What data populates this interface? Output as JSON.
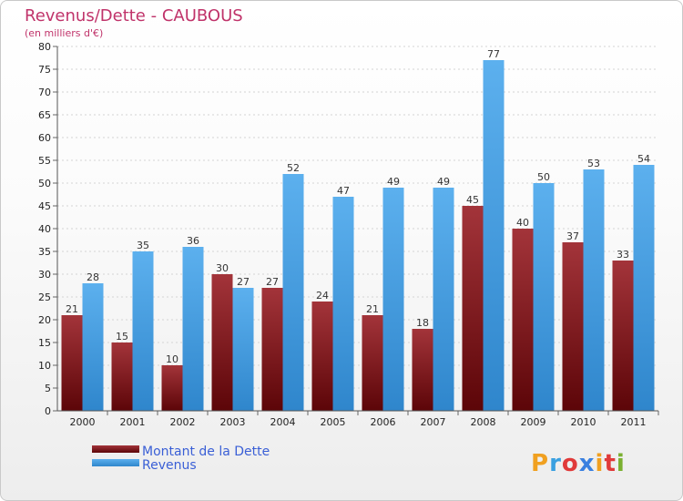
{
  "chart_data": {
    "type": "bar",
    "title": "Revenus/Dette - CAUBOUS",
    "subtitle": "(en milliers d'€)",
    "categories": [
      "2000",
      "2001",
      "2002",
      "2003",
      "2004",
      "2005",
      "2006",
      "2007",
      "2008",
      "2009",
      "2010",
      "2011"
    ],
    "series": [
      {
        "name": "Montant de la Dette",
        "color": "#8b1a1f",
        "values": [
          21,
          15,
          10,
          30,
          27,
          24,
          21,
          18,
          45,
          40,
          37,
          33
        ]
      },
      {
        "name": "Revenus",
        "color": "#4fa3e6",
        "values": [
          28,
          35,
          36,
          27,
          52,
          47,
          49,
          49,
          77,
          50,
          53,
          54
        ]
      }
    ],
    "ylim": [
      0,
      80
    ],
    "yticks": [
      0,
      5,
      10,
      15,
      20,
      25,
      30,
      35,
      40,
      45,
      50,
      55,
      60,
      65,
      70,
      75,
      80
    ],
    "grid": true,
    "legend": "bottom-left"
  },
  "brand": {
    "letters": [
      "P",
      "r",
      "o",
      "x",
      "i",
      "t",
      "i"
    ],
    "colors": [
      "#f0a020",
      "#3aa0e0",
      "#e03a3a",
      "#3a80e0",
      "#f0a020",
      "#e03a3a",
      "#7ab030"
    ]
  }
}
